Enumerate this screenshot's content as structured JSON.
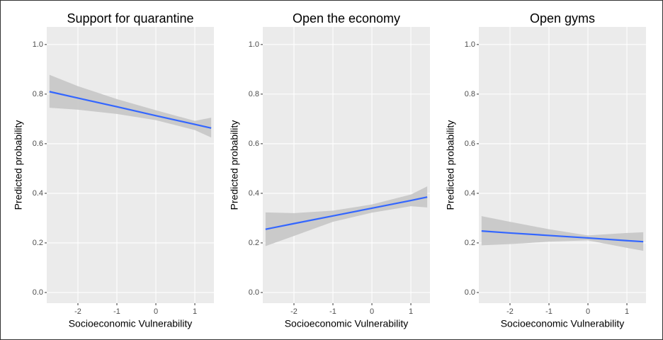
{
  "chart_data": [
    {
      "type": "line",
      "title": "Support for quarantine",
      "xlabel": "Socioeconomic Vulnerability",
      "ylabel": "Predicted probability",
      "x": [
        -2.73,
        -2,
        -1,
        0,
        1,
        1.42
      ],
      "values": [
        0.81,
        0.784,
        0.749,
        0.713,
        0.678,
        0.663
      ],
      "upper": [
        0.878,
        0.832,
        0.78,
        0.735,
        0.692,
        0.705
      ],
      "lower": [
        0.745,
        0.737,
        0.72,
        0.695,
        0.655,
        0.625
      ],
      "color": "#3366ff",
      "band_color": "#c6c6c6",
      "xlim": [
        -2.8,
        1.49
      ],
      "ylim": [
        -0.043,
        1.071
      ],
      "xticks": [
        -2,
        -1,
        0,
        1
      ],
      "yticks": [
        {
          "value": 0,
          "label": "0.0"
        },
        0.2,
        0.4,
        0.6,
        0.8,
        {
          "value": 1,
          "label": "1.0"
        }
      ],
      "grid": true
    },
    {
      "type": "line",
      "title": "Open the economy",
      "xlabel": "Socioeconomic Vulnerability",
      "ylabel": "Predicted probability",
      "x": [
        -2.73,
        -2,
        -1,
        0,
        1,
        1.42
      ],
      "values": [
        0.255,
        0.278,
        0.309,
        0.34,
        0.371,
        0.385
      ],
      "upper": [
        0.323,
        0.32,
        0.33,
        0.355,
        0.395,
        0.428
      ],
      "lower": [
        0.187,
        0.228,
        0.285,
        0.322,
        0.348,
        0.343
      ],
      "color": "#3366ff",
      "band_color": "#c6c6c6",
      "xlim": [
        -2.8,
        1.49
      ],
      "ylim": [
        -0.043,
        1.071
      ],
      "xticks": [
        -2,
        -1,
        0,
        1
      ],
      "yticks": [
        {
          "value": 0,
          "label": "0.0"
        },
        0.2,
        0.4,
        0.6,
        0.8,
        {
          "value": 1,
          "label": "1.0"
        }
      ],
      "grid": true
    },
    {
      "type": "line",
      "title": "Open gyms",
      "xlabel": "Socioeconomic Vulnerability",
      "ylabel": "Predicted probability",
      "x": [
        -2.73,
        -2,
        -1,
        0,
        1,
        1.42
      ],
      "values": [
        0.248,
        0.24,
        0.23,
        0.22,
        0.209,
        0.205
      ],
      "upper": [
        0.308,
        0.285,
        0.255,
        0.23,
        0.24,
        0.243
      ],
      "lower": [
        0.19,
        0.195,
        0.205,
        0.21,
        0.18,
        0.168
      ],
      "color": "#3366ff",
      "band_color": "#c6c6c6",
      "xlim": [
        -2.8,
        1.49
      ],
      "ylim": [
        -0.043,
        1.071
      ],
      "xticks": [
        -2,
        -1,
        0,
        1
      ],
      "yticks": [
        {
          "value": 0,
          "label": "0.0"
        },
        0.2,
        0.4,
        0.6,
        0.8,
        {
          "value": 1,
          "label": "1.0"
        }
      ],
      "grid": true
    }
  ]
}
